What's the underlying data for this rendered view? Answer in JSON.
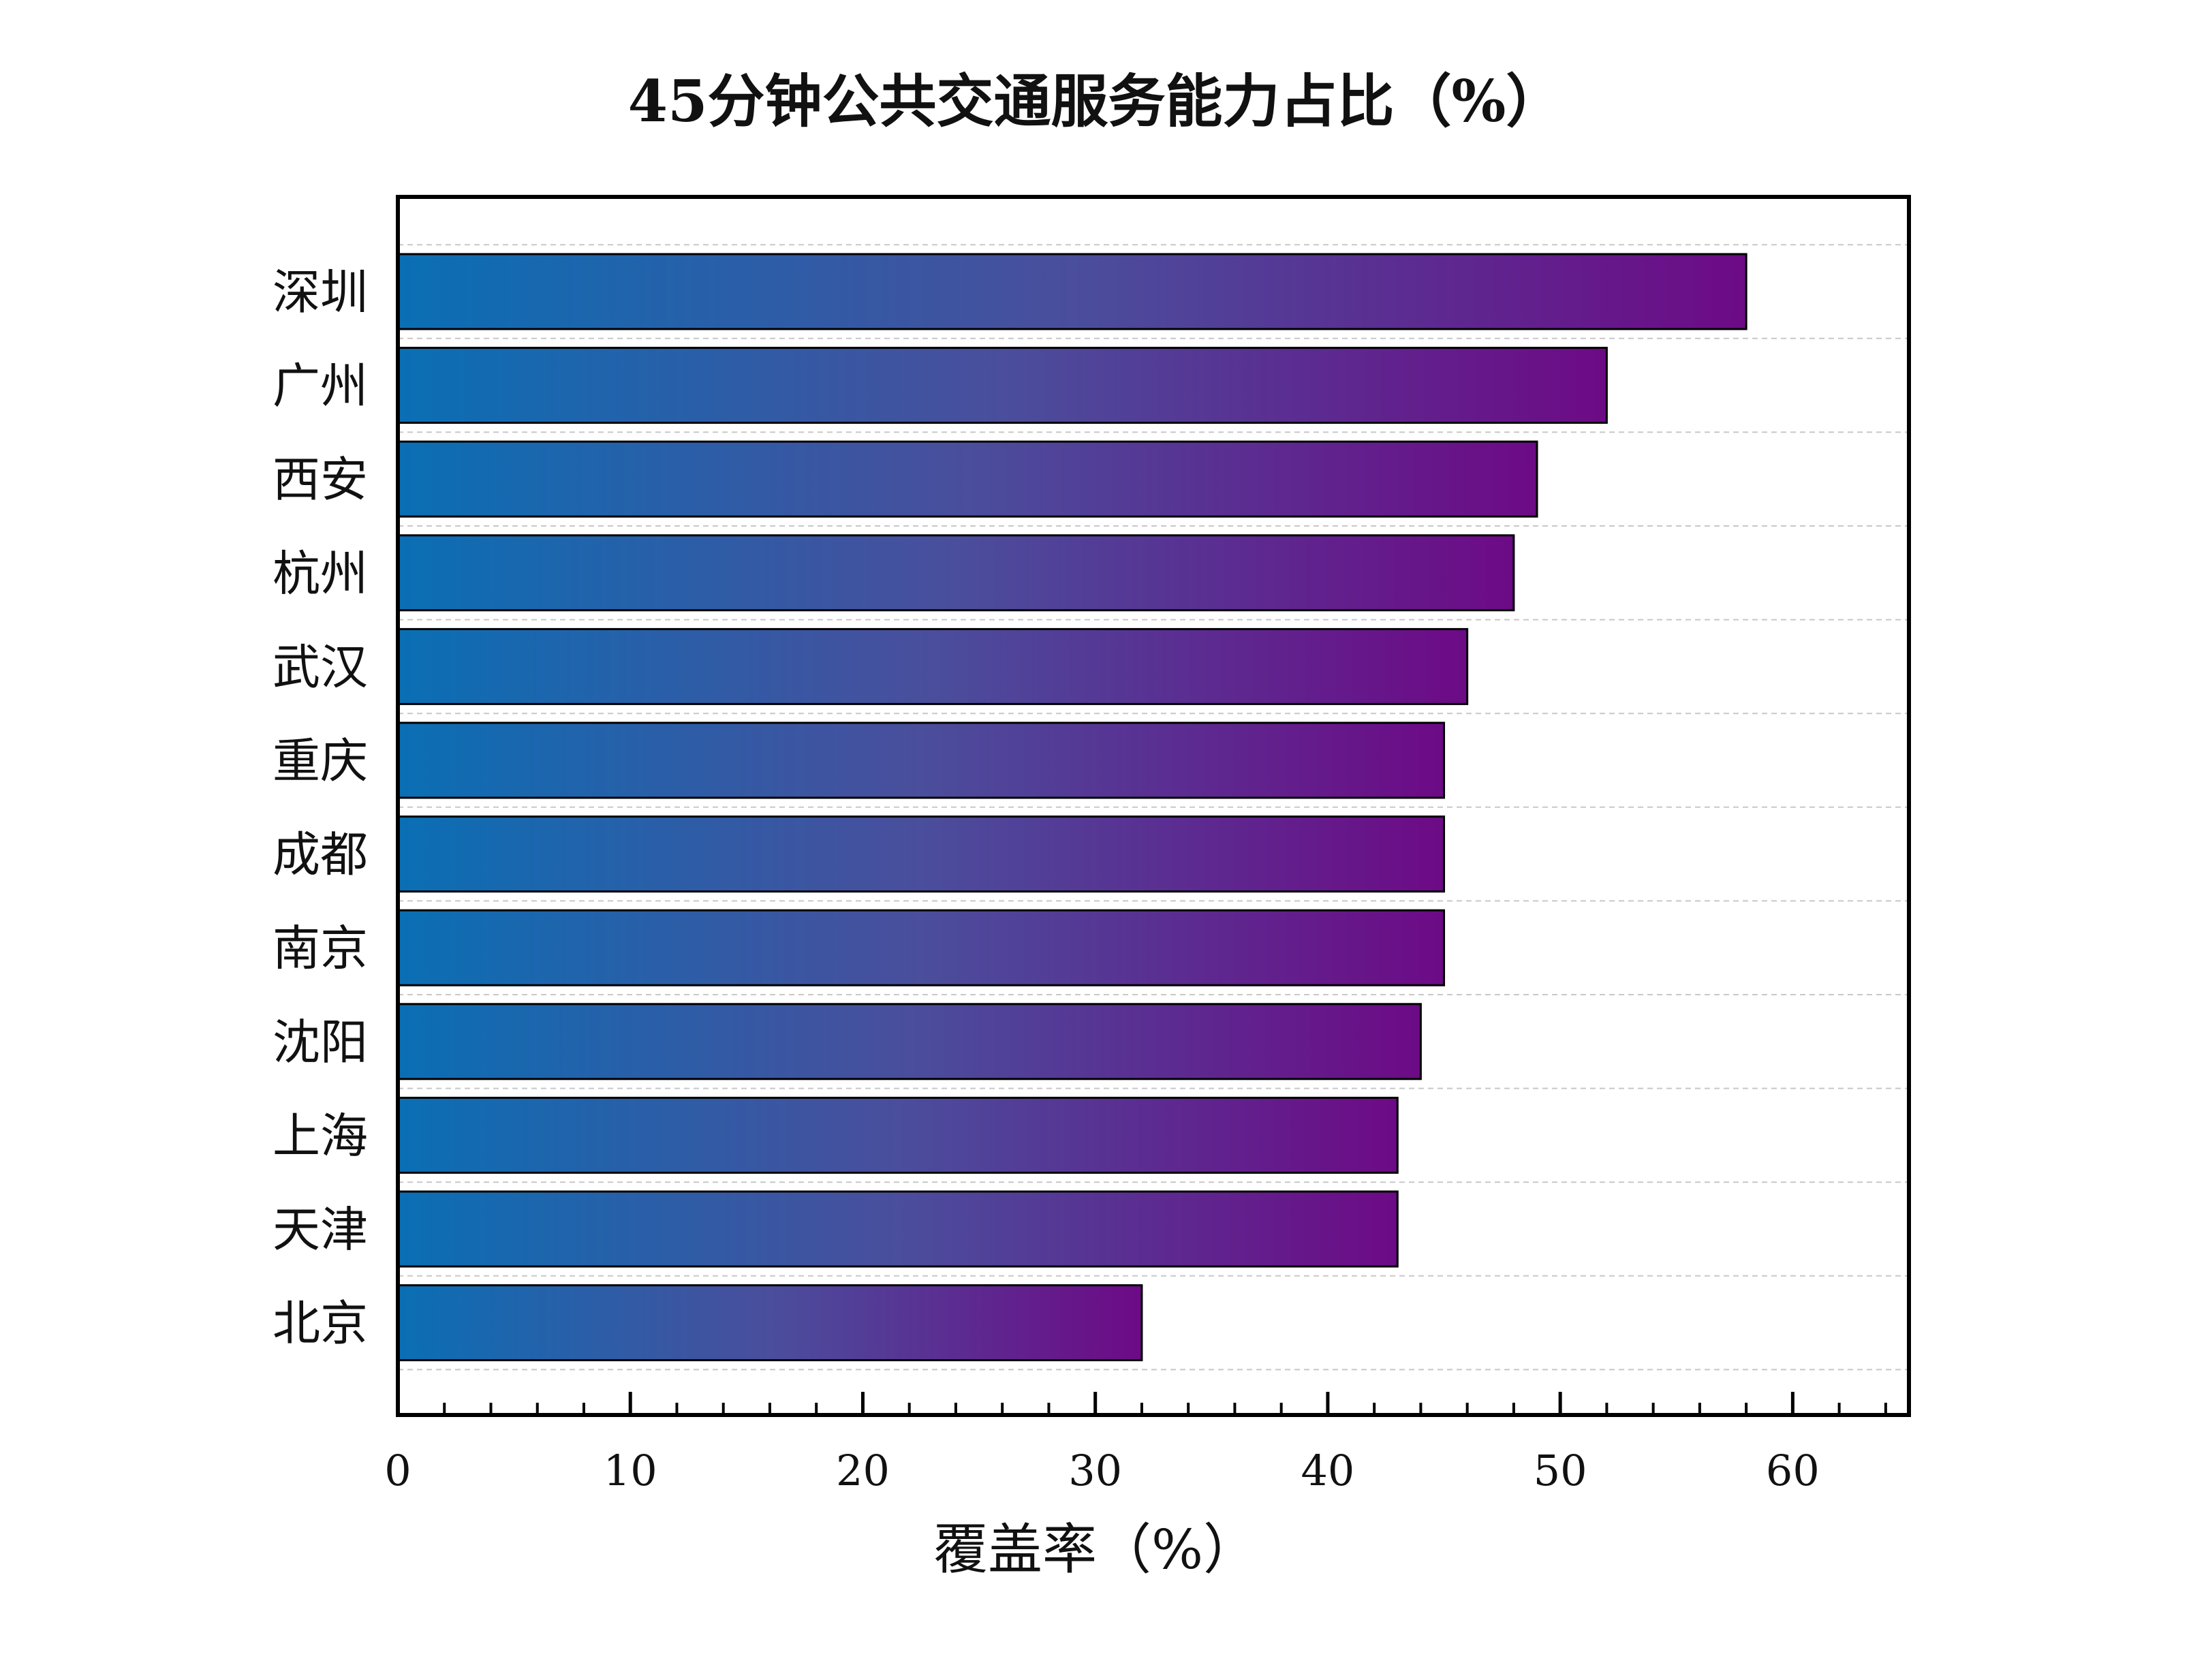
{
  "chart_data": {
    "type": "bar",
    "orientation": "horizontal",
    "title": "45分钟公共交通服务能力占比（%）",
    "xlabel": "覆盖率（%）",
    "ylabel": "",
    "categories": [
      "深圳",
      "广州",
      "西安",
      "杭州",
      "武汉",
      "重庆",
      "成都",
      "南京",
      "沈阳",
      "上海",
      "天津",
      "北京"
    ],
    "values": [
      58,
      52,
      49,
      48,
      46,
      45,
      45,
      45,
      44,
      43,
      43,
      32
    ],
    "xlim": [
      0,
      65
    ],
    "xticks": [
      0,
      10,
      20,
      30,
      40,
      50,
      60
    ],
    "xtick_labels": [
      "0",
      "10",
      "20",
      "30",
      "40",
      "50",
      "60"
    ],
    "grid": "horizontal dashed",
    "legend": "none",
    "colors": {
      "gradient_start": "#0a6fb4",
      "gradient_mid": "#4a4e9c",
      "gradient_end": "#6d0a86",
      "bar_edge": "#000000",
      "grid": "#c8c8c8",
      "frame": "#000000"
    }
  }
}
